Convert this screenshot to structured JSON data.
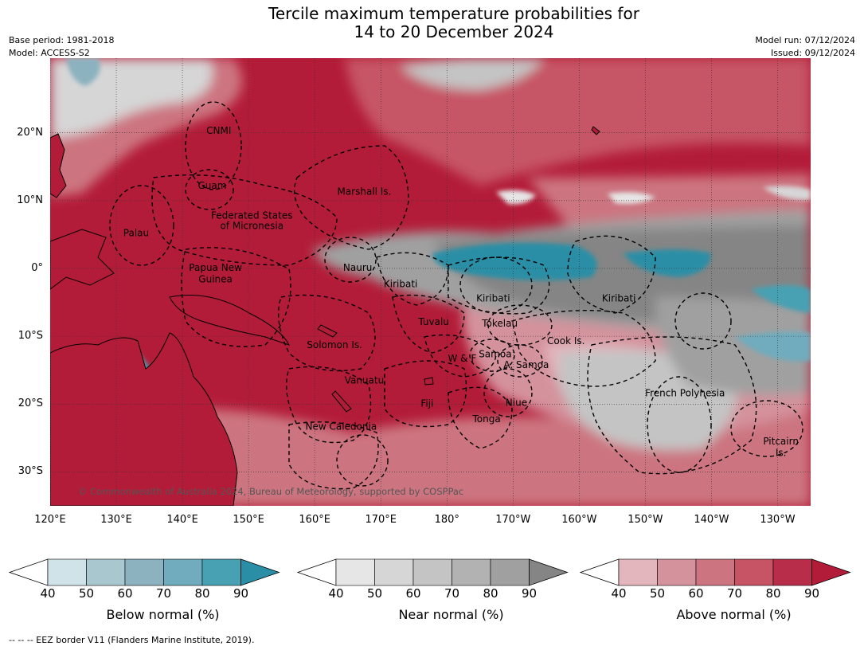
{
  "title": {
    "line1": "Tercile maximum temperature probabilities for",
    "line2": "14 to 20 December 2024"
  },
  "meta": {
    "base_period": "Base period: 1981-2018",
    "model": "Model: ACCESS-S2",
    "model_run": "Model run: 07/12/2024",
    "issued": "Issued: 09/12/2024"
  },
  "map": {
    "lon_range": [
      120,
      235
    ],
    "lat_range": [
      -35,
      31
    ],
    "credit": "© Commonwealth of Australia 2024, Bureau of Meteorology, supported by COSPPac",
    "x_ticks": [
      {
        "lon": 120,
        "label": "120°E"
      },
      {
        "lon": 130,
        "label": "130°E"
      },
      {
        "lon": 140,
        "label": "140°E"
      },
      {
        "lon": 150,
        "label": "150°E"
      },
      {
        "lon": 160,
        "label": "160°E"
      },
      {
        "lon": 170,
        "label": "170°E"
      },
      {
        "lon": 180,
        "label": "180°"
      },
      {
        "lon": 190,
        "label": "170°W"
      },
      {
        "lon": 200,
        "label": "160°W"
      },
      {
        "lon": 210,
        "label": "150°W"
      },
      {
        "lon": 220,
        "label": "140°W"
      },
      {
        "lon": 230,
        "label": "130°W"
      }
    ],
    "y_ticks": [
      {
        "lat": 20,
        "label": "20°N"
      },
      {
        "lat": 10,
        "label": "10°N"
      },
      {
        "lat": 0,
        "label": "0°"
      },
      {
        "lat": -10,
        "label": "10°S"
      },
      {
        "lat": -20,
        "label": "20°S"
      },
      {
        "lat": -30,
        "label": "30°S"
      }
    ],
    "regions": [
      {
        "text": "CNMI",
        "lon": 145.5,
        "lat": 20.3
      },
      {
        "text": "Guam",
        "lon": 144.5,
        "lat": 12.2
      },
      {
        "text": "Marshall Is.",
        "lon": 167.5,
        "lat": 11.3
      },
      {
        "text": "Federated States",
        "lon": 150.5,
        "lat": 7.8
      },
      {
        "text": "of Micronesia",
        "lon": 150.5,
        "lat": 6.3
      },
      {
        "text": "Palau",
        "lon": 133,
        "lat": 5.2
      },
      {
        "text": "Papua New",
        "lon": 145,
        "lat": 0.1
      },
      {
        "text": "Guinea",
        "lon": 145,
        "lat": -1.6
      },
      {
        "text": "Nauru",
        "lon": 166.5,
        "lat": 0.1
      },
      {
        "text": "Kiribati",
        "lon": 173,
        "lat": -2.3
      },
      {
        "text": "Kiribati",
        "lon": 187,
        "lat": -4.4
      },
      {
        "text": "Kiribati",
        "lon": 206,
        "lat": -4.4
      },
      {
        "text": "Tuvalu",
        "lon": 178,
        "lat": -7.9
      },
      {
        "text": "Tokelau",
        "lon": 188,
        "lat": -8.1
      },
      {
        "text": "Cook Is.",
        "lon": 198,
        "lat": -10.7
      },
      {
        "text": "Solomon Is.",
        "lon": 163,
        "lat": -11.3
      },
      {
        "text": "Samoa",
        "lon": 187.3,
        "lat": -12.6
      },
      {
        "text": "W & F",
        "lon": 182.3,
        "lat": -13.3
      },
      {
        "text": "A. Samoa",
        "lon": 192,
        "lat": -14.2
      },
      {
        "text": "Vanuatu",
        "lon": 167.5,
        "lat": -16.5
      },
      {
        "text": "Fiji",
        "lon": 177,
        "lat": -19.9
      },
      {
        "text": "Niue",
        "lon": 190.5,
        "lat": -19.8
      },
      {
        "text": "French Polynesia",
        "lon": 216,
        "lat": -18.4
      },
      {
        "text": "Tonga",
        "lon": 186,
        "lat": -22.2
      },
      {
        "text": "New Caledonia",
        "lon": 164,
        "lat": -23.3
      },
      {
        "text": "Pitcairn",
        "lon": 230.5,
        "lat": -25.5
      },
      {
        "text": "Is.",
        "lon": 230.5,
        "lat": -27.2
      }
    ]
  },
  "colorbars": [
    {
      "label": "Below normal (%)",
      "colors": [
        "#cfe3e9",
        "#a8c7ce",
        "#8cb2bf",
        "#70acbd",
        "#47a1b3",
        "#2a8fa6"
      ],
      "ticks": [
        "40",
        "50",
        "60",
        "70",
        "80",
        "90"
      ]
    },
    {
      "label": "Near normal (%)",
      "colors": [
        "#e6e6e6",
        "#d6d6d6",
        "#c4c4c4",
        "#b2b2b2",
        "#a0a0a0",
        "#858585"
      ],
      "ticks": [
        "40",
        "50",
        "60",
        "70",
        "80",
        "90"
      ]
    },
    {
      "label": "Above normal (%)",
      "colors": [
        "#e3b6bd",
        "#d4929c",
        "#cc7480",
        "#c65465",
        "#b82e4a",
        "#b31c38"
      ],
      "ticks": [
        "40",
        "50",
        "60",
        "70",
        "80",
        "90"
      ]
    }
  ],
  "footer": "--  --  -- EEZ border V11 (Flanders Marine Institute, 2019)."
}
